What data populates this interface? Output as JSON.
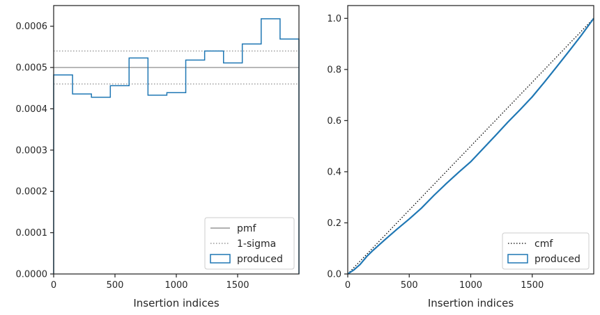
{
  "chart_data": [
    {
      "type": "step",
      "title": "",
      "xlabel": "Insertion indices",
      "ylabel": "",
      "xlim": [
        0,
        2000
      ],
      "ylim": [
        0,
        0.00065
      ],
      "xticks": [
        "0",
        "500",
        "1000",
        "1500"
      ],
      "yticks": [
        "0.0000",
        "0.0001",
        "0.0002",
        "0.0003",
        "0.0004",
        "0.0005",
        "0.0006"
      ],
      "legend_position": "lower-right",
      "reference_lines": [
        {
          "name": "pmf",
          "y": 0.0005,
          "style": "solid",
          "color": "#808080"
        },
        {
          "name": "1-sigma",
          "y": 0.00054,
          "style": "dotted",
          "color": "#808080"
        },
        {
          "name": "1-sigma",
          "y": 0.00046,
          "style": "dotted",
          "color": "#808080"
        }
      ],
      "series": [
        {
          "name": "produced",
          "color": "#1f77b4",
          "bin_edges": [
            0,
            154,
            308,
            462,
            615,
            769,
            923,
            1077,
            1231,
            1385,
            1538,
            1692,
            1846,
            2000
          ],
          "values": [
            0.000482,
            0.000436,
            0.000428,
            0.000456,
            0.000523,
            0.000433,
            0.000439,
            0.000518,
            0.00054,
            0.000511,
            0.000557,
            0.000618,
            0.000569
          ]
        }
      ],
      "legend": [
        "pmf",
        "1-sigma",
        "produced"
      ]
    },
    {
      "type": "line",
      "title": "",
      "xlabel": "Insertion indices",
      "ylabel": "",
      "xlim": [
        0,
        2000
      ],
      "ylim": [
        0,
        1.05
      ],
      "xticks": [
        "0",
        "500",
        "1000",
        "1500"
      ],
      "yticks": [
        "0.0",
        "0.2",
        "0.4",
        "0.6",
        "0.8",
        "1.0"
      ],
      "legend_position": "lower-right",
      "series": [
        {
          "name": "cmf",
          "style": "dotted",
          "color": "#000000",
          "x": [
            0,
            2000
          ],
          "y": [
            0,
            1
          ]
        },
        {
          "name": "produced",
          "color": "#1f77b4",
          "x": [
            0,
            50,
            100,
            154,
            200,
            300,
            400,
            500,
            600,
            700,
            800,
            900,
            1000,
            1100,
            1200,
            1300,
            1400,
            1500,
            1600,
            1700,
            1800,
            1900,
            2000
          ],
          "y": [
            0,
            0.016,
            0.037,
            0.068,
            0.09,
            0.133,
            0.175,
            0.215,
            0.258,
            0.307,
            0.353,
            0.397,
            0.439,
            0.49,
            0.541,
            0.593,
            0.642,
            0.693,
            0.751,
            0.811,
            0.872,
            0.934,
            1.0
          ]
        }
      ],
      "legend": [
        "cmf",
        "produced"
      ]
    }
  ]
}
